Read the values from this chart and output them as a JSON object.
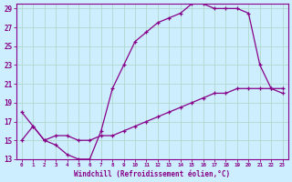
{
  "xlabel": "Windchill (Refroidissement éolien,°C)",
  "bg_color": "#cceeff",
  "grid_color": "#b0d8cc",
  "line_color": "#880088",
  "xlim": [
    -0.5,
    23.5
  ],
  "ylim": [
    13,
    29.5
  ],
  "xticks": [
    0,
    1,
    2,
    3,
    4,
    5,
    6,
    7,
    8,
    9,
    10,
    11,
    12,
    13,
    14,
    15,
    16,
    17,
    18,
    19,
    20,
    21,
    22,
    23
  ],
  "yticks": [
    13,
    15,
    17,
    19,
    21,
    23,
    25,
    27,
    29
  ],
  "line1_x": [
    0,
    1,
    2,
    3,
    4,
    5,
    6,
    7,
    8,
    9,
    10,
    11,
    12,
    13,
    14,
    15,
    16,
    17,
    18,
    19,
    20,
    21,
    22,
    23
  ],
  "line1_y": [
    18,
    16.5,
    15,
    14.5,
    13.5,
    13,
    13,
    16,
    20.5,
    23,
    25.5,
    26.5,
    27.5,
    28,
    28.5,
    29.5,
    29.5,
    29,
    29,
    29,
    28.5,
    23,
    20.5,
    20
  ],
  "line2_x": [
    0,
    1,
    2,
    3,
    4,
    5,
    6,
    7,
    8,
    9,
    10,
    11,
    12,
    13,
    14,
    15,
    16,
    17,
    18,
    19,
    20,
    21,
    22,
    23
  ],
  "line2_y": [
    15,
    16.5,
    15,
    15.5,
    15.5,
    15,
    15,
    15.5,
    15.5,
    16,
    16.5,
    17,
    17.5,
    18,
    18.5,
    19,
    19.5,
    20,
    20,
    20.5,
    20.5,
    20.5,
    20.5,
    20.5
  ]
}
